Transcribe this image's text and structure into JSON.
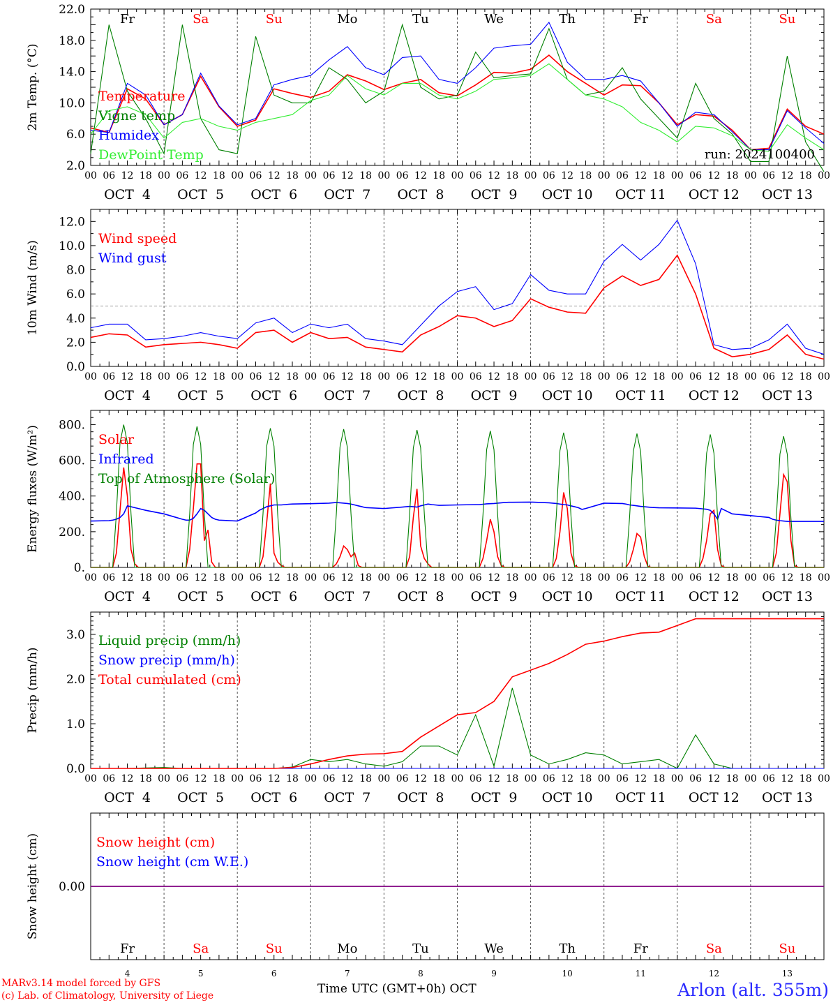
{
  "days": [
    "Fr",
    "Sa",
    "Su",
    "Mo",
    "Tu",
    "We",
    "Th",
    "Fr",
    "Sa",
    "Su"
  ],
  "weekend_days": [
    "Sa",
    "Su"
  ],
  "day_numbers": [
    "4",
    "5",
    "6",
    "7",
    "8",
    "9",
    "10",
    "11",
    "12",
    "13"
  ],
  "date_labels": [
    "OCT  4",
    "OCT  5",
    "OCT  6",
    "OCT  7",
    "OCT  8",
    "OCT  9",
    "OCT 10",
    "OCT 11",
    "OCT 12",
    "OCT 13"
  ],
  "hour_labels": [
    "00",
    "06",
    "12",
    "18"
  ],
  "hour_end_label": "00",
  "colors": {
    "red": "#ff0000",
    "green": "#008000",
    "blue": "#0000ff",
    "lightgreen": "#33ee33",
    "purple": "#800080",
    "grid": "#555555"
  },
  "footer": {
    "credit_line1": "MARv3.14 model forced by GFS",
    "credit_line2": "(c) Lab. of Climatology, University of Liege",
    "xaxis_title": "Time UTC (GMT+0h) OCT",
    "station": "Arlon (alt. 355m)"
  },
  "chart_data": [
    {
      "type": "line",
      "ylabel": "2m Temp. (°C)",
      "ylim": [
        2.0,
        22.0
      ],
      "yticks": [
        "2.0",
        "6.0",
        "10.0",
        "14.0",
        "18.0",
        "22.0"
      ],
      "show_day_names": true,
      "annotation": "run: 2024100400",
      "x_days": [
        0,
        0.25,
        0.5,
        0.75,
        1,
        1.25,
        1.5,
        1.75,
        2,
        2.25,
        2.5,
        2.75,
        3,
        3.25,
        3.5,
        3.75,
        4,
        4.25,
        4.5,
        4.75,
        5,
        5.25,
        5.5,
        5.75,
        6,
        6.25,
        6.5,
        6.75,
        7,
        7.25,
        7.5,
        7.75,
        8,
        8.25,
        8.5,
        8.75,
        9,
        9.25,
        9.5,
        9.75,
        10
      ],
      "series": [
        {
          "name": "Temperature",
          "color": "red",
          "values": [
            6.8,
            6.2,
            11.8,
            10.5,
            7.2,
            8.5,
            13.4,
            9.5,
            7.0,
            7.8,
            11.8,
            11.2,
            10.7,
            11.5,
            13.6,
            12.8,
            11.7,
            12.5,
            13.0,
            11.3,
            10.9,
            12.3,
            13.9,
            13.8,
            14.3,
            16.1,
            14.0,
            12.5,
            11.0,
            12.3,
            12.2,
            10.0,
            7.2,
            8.5,
            8.3,
            6.5,
            4.0,
            4.2,
            9.2,
            7.0,
            6.0
          ]
        },
        {
          "name": "Vigne temp",
          "color": "green",
          "values": [
            3.5,
            20.0,
            11.5,
            8.0,
            3.5,
            20.0,
            8.0,
            4.0,
            3.5,
            18.5,
            11.0,
            10.0,
            10.0,
            14.5,
            13.0,
            10.0,
            11.5,
            20.0,
            12.0,
            10.5,
            11.0,
            16.5,
            13.2,
            13.5,
            13.7,
            19.5,
            13.0,
            11.0,
            11.5,
            14.5,
            10.5,
            8.0,
            5.5,
            12.5,
            8.0,
            6.0,
            2.5,
            2.5,
            16.0,
            5.0,
            1.2
          ]
        },
        {
          "name": "Humidex",
          "color": "blue",
          "values": [
            6.5,
            6.2,
            12.5,
            11.0,
            7.2,
            8.5,
            13.8,
            9.6,
            7.2,
            8.0,
            12.3,
            13.0,
            13.5,
            15.5,
            17.2,
            14.5,
            13.6,
            15.8,
            16.0,
            13.0,
            12.5,
            14.5,
            17.0,
            17.3,
            17.5,
            20.3,
            15.2,
            13.0,
            13.0,
            13.5,
            12.8,
            10.0,
            7.0,
            8.8,
            8.5,
            6.3,
            4.0,
            4.0,
            9.0,
            6.8,
            4.8
          ]
        },
        {
          "name": "DewPoint Temp",
          "color": "lightgreen",
          "values": [
            6.0,
            9.0,
            9.5,
            8.5,
            5.5,
            7.5,
            8.0,
            7.0,
            6.5,
            7.5,
            8.0,
            8.5,
            10.3,
            11.0,
            13.5,
            11.8,
            11.0,
            12.5,
            12.5,
            11.0,
            10.5,
            11.5,
            13.0,
            13.2,
            13.5,
            15.0,
            13.0,
            11.0,
            10.5,
            9.5,
            7.5,
            6.5,
            5.0,
            7.0,
            6.8,
            5.8,
            4.0,
            3.8,
            7.2,
            5.5,
            4.0
          ]
        }
      ]
    },
    {
      "type": "line",
      "ylabel": "10m Wind (m/s)",
      "ylim": [
        0.0,
        13.0
      ],
      "yticks": [
        "0.0",
        "2.0",
        "4.0",
        "6.0",
        "8.0",
        "10.0",
        "12.0"
      ],
      "ytick_values": [
        0,
        2,
        4,
        6,
        8,
        10,
        12
      ],
      "hline": 5.0,
      "x_days": [
        0,
        0.25,
        0.5,
        0.75,
        1,
        1.25,
        1.5,
        1.75,
        2,
        2.25,
        2.5,
        2.75,
        3,
        3.25,
        3.5,
        3.75,
        4,
        4.25,
        4.5,
        4.75,
        5,
        5.25,
        5.5,
        5.75,
        6,
        6.25,
        6.5,
        6.75,
        7,
        7.25,
        7.5,
        7.75,
        8,
        8.25,
        8.5,
        8.75,
        9,
        9.25,
        9.5,
        9.75,
        10
      ],
      "series": [
        {
          "name": "Wind speed",
          "color": "red",
          "values": [
            2.4,
            2.7,
            2.6,
            1.6,
            1.8,
            1.9,
            2.0,
            1.8,
            1.5,
            2.8,
            3.0,
            2.0,
            2.8,
            2.3,
            2.4,
            1.6,
            1.4,
            1.2,
            2.6,
            3.3,
            4.2,
            4.0,
            3.3,
            3.8,
            5.6,
            4.9,
            4.5,
            4.4,
            6.5,
            7.5,
            6.7,
            7.2,
            9.2,
            6.0,
            1.5,
            0.8,
            1.0,
            1.4,
            2.6,
            1.0,
            0.6
          ]
        },
        {
          "name": "Wind gust",
          "color": "blue",
          "values": [
            3.2,
            3.5,
            3.5,
            2.2,
            2.3,
            2.5,
            2.8,
            2.5,
            2.3,
            3.6,
            4.0,
            2.8,
            3.5,
            3.2,
            3.5,
            2.3,
            2.1,
            1.8,
            3.4,
            5.0,
            6.2,
            6.6,
            4.7,
            5.2,
            7.6,
            6.3,
            6.0,
            6.0,
            8.7,
            10.1,
            8.8,
            10.1,
            12.1,
            8.5,
            1.8,
            1.4,
            1.5,
            2.2,
            3.5,
            1.5,
            1.0
          ]
        }
      ]
    },
    {
      "type": "line",
      "ylabel": "Energy fluxes (W/m²)",
      "ylim": [
        0,
        880
      ],
      "yticks": [
        "0.",
        "200.",
        "400.",
        "600.",
        "800."
      ],
      "ytick_values": [
        0,
        200,
        400,
        600,
        800
      ],
      "x_days": [
        0,
        0.25,
        0.3,
        0.35,
        0.4,
        0.45,
        0.5,
        0.55,
        0.6,
        0.65,
        0.7,
        0.75,
        1,
        1.25,
        1.3,
        1.35,
        1.4,
        1.45,
        1.5,
        1.55,
        1.6,
        1.65,
        1.7,
        1.75,
        2,
        2.25,
        2.3,
        2.35,
        2.4,
        2.45,
        2.5,
        2.55,
        2.6,
        2.65,
        2.7,
        2.75,
        3,
        3.25,
        3.3,
        3.35,
        3.4,
        3.45,
        3.5,
        3.55,
        3.6,
        3.65,
        3.7,
        3.75,
        4,
        4.25,
        4.3,
        4.35,
        4.4,
        4.45,
        4.5,
        4.55,
        4.6,
        4.65,
        4.7,
        4.75,
        5,
        5.25,
        5.3,
        5.35,
        5.4,
        5.45,
        5.5,
        5.55,
        5.6,
        5.65,
        5.7,
        5.75,
        6,
        6.25,
        6.3,
        6.35,
        6.4,
        6.45,
        6.5,
        6.55,
        6.6,
        6.65,
        6.7,
        6.75,
        7,
        7.25,
        7.3,
        7.35,
        7.4,
        7.45,
        7.5,
        7.55,
        7.6,
        7.65,
        7.7,
        7.75,
        8,
        8.25,
        8.3,
        8.35,
        8.4,
        8.45,
        8.5,
        8.55,
        8.6,
        8.65,
        8.7,
        8.75,
        9,
        9.25,
        9.3,
        9.35,
        9.4,
        9.45,
        9.5,
        9.55,
        9.6,
        9.65,
        9.7,
        9.75,
        10
      ],
      "series": [
        {
          "name": "Solar",
          "color": "red",
          "values": [
            0,
            0,
            0,
            80,
            320,
            560,
            400,
            100,
            20,
            0,
            0,
            0,
            0,
            0,
            0,
            100,
            330,
            580,
            580,
            150,
            210,
            30,
            0,
            0,
            0,
            0,
            0,
            60,
            250,
            470,
            80,
            30,
            10,
            0,
            0,
            0,
            0,
            0,
            0,
            20,
            60,
            120,
            100,
            60,
            80,
            10,
            0,
            0,
            0,
            0,
            0,
            60,
            280,
            440,
            120,
            50,
            20,
            0,
            0,
            0,
            0,
            0,
            0,
            50,
            150,
            270,
            200,
            60,
            10,
            0,
            0,
            0,
            0,
            0,
            0,
            50,
            200,
            420,
            330,
            80,
            10,
            0,
            0,
            0,
            0,
            0,
            0,
            30,
            100,
            190,
            170,
            60,
            5,
            0,
            0,
            0,
            0,
            0,
            0,
            50,
            150,
            300,
            320,
            100,
            10,
            0,
            0,
            0,
            0,
            0,
            0,
            80,
            300,
            520,
            480,
            150,
            10,
            0,
            0,
            0,
            0
          ]
        },
        {
          "name": "Infrared",
          "color": "blue",
          "values": [
            260,
            262,
            265,
            270,
            280,
            300,
            345,
            340,
            335,
            330,
            325,
            320,
            300,
            270,
            265,
            265,
            275,
            300,
            330,
            320,
            300,
            280,
            270,
            265,
            260,
            305,
            320,
            330,
            340,
            345,
            350,
            350,
            350,
            352,
            354,
            355,
            357,
            360,
            362,
            364,
            362,
            360,
            358,
            355,
            350,
            345,
            340,
            335,
            330,
            338,
            340,
            342,
            340,
            338,
            345,
            350,
            355,
            352,
            350,
            348,
            350,
            352,
            352,
            354,
            356,
            357,
            358,
            360,
            362,
            364,
            365,
            365,
            366,
            362,
            360,
            358,
            355,
            352,
            350,
            345,
            340,
            335,
            325,
            330,
            360,
            358,
            355,
            350,
            348,
            345,
            342,
            340,
            338,
            336,
            335,
            334,
            333,
            332,
            330,
            328,
            326,
            320,
            300,
            270,
            330,
            320,
            310,
            300,
            290,
            280,
            270,
            265,
            262,
            260,
            258,
            258,
            258,
            258,
            258,
            258,
            258
          ]
        },
        {
          "name": "Top of Atmosphere (Solar)",
          "color": "green",
          "values": [
            0,
            0,
            0,
            300,
            700,
            800,
            700,
            300,
            0,
            0,
            0,
            0,
            0,
            0,
            0,
            300,
            690,
            790,
            690,
            300,
            0,
            0,
            0,
            0,
            0,
            0,
            0,
            300,
            680,
            780,
            680,
            300,
            0,
            0,
            0,
            0,
            0,
            0,
            0,
            300,
            675,
            775,
            675,
            300,
            0,
            0,
            0,
            0,
            0,
            0,
            0,
            300,
            670,
            770,
            670,
            300,
            0,
            0,
            0,
            0,
            0,
            0,
            0,
            295,
            660,
            765,
            660,
            295,
            0,
            0,
            0,
            0,
            0,
            0,
            0,
            290,
            655,
            755,
            655,
            290,
            0,
            0,
            0,
            0,
            0,
            0,
            0,
            285,
            650,
            750,
            650,
            285,
            0,
            0,
            0,
            0,
            0,
            0,
            0,
            280,
            640,
            745,
            640,
            280,
            0,
            0,
            0,
            0,
            0,
            0,
            0,
            275,
            635,
            735,
            635,
            275,
            0,
            0,
            0,
            0,
            0
          ]
        }
      ]
    },
    {
      "type": "line",
      "ylabel": "Precip (mm/h)",
      "ylim": [
        0.0,
        3.5
      ],
      "yticks": [
        "0.0",
        "1.0",
        "2.0",
        "3.0"
      ],
      "ytick_values": [
        0,
        1,
        2,
        3
      ],
      "x_days": [
        0,
        0.25,
        0.5,
        0.75,
        1,
        1.25,
        1.5,
        1.75,
        2,
        2.25,
        2.5,
        2.75,
        3,
        3.25,
        3.5,
        3.75,
        4,
        4.25,
        4.5,
        4.75,
        5,
        5.25,
        5.5,
        5.75,
        6,
        6.25,
        6.5,
        6.75,
        7,
        7.25,
        7.5,
        7.75,
        8,
        8.25,
        8.5,
        8.75,
        9,
        9.25,
        9.5,
        9.75,
        10
      ],
      "series": [
        {
          "name": "Liquid precip (mm/h)",
          "color": "green",
          "values": [
            0,
            0,
            0,
            0.01,
            0.02,
            0,
            0,
            0,
            0,
            0,
            0,
            0.03,
            0.2,
            0.15,
            0.2,
            0.1,
            0.05,
            0.15,
            0.5,
            0.5,
            0.3,
            1.2,
            0.05,
            1.8,
            0.3,
            0.1,
            0.2,
            0.35,
            0.3,
            0.1,
            0.15,
            0.2,
            0,
            0.75,
            0.1,
            0,
            0,
            0,
            0,
            0,
            0
          ]
        },
        {
          "name": "Snow precip (mm/h)",
          "color": "blue",
          "values": [
            0,
            0,
            0,
            0,
            0,
            0,
            0,
            0,
            0,
            0,
            0,
            0,
            0,
            0,
            0,
            0,
            0,
            0,
            0,
            0,
            0,
            0,
            0,
            0,
            0,
            0,
            0,
            0,
            0,
            0,
            0,
            0,
            0,
            0,
            0,
            0,
            0,
            0,
            0,
            0,
            0
          ]
        },
        {
          "name": "Total cumulated (cm)",
          "color": "red",
          "values": [
            0,
            0,
            0,
            0,
            0,
            0,
            0,
            0,
            0,
            0,
            0,
            0.02,
            0.1,
            0.2,
            0.28,
            0.32,
            0.33,
            0.38,
            0.7,
            0.95,
            1.2,
            1.25,
            1.5,
            2.05,
            2.2,
            2.35,
            2.55,
            2.78,
            2.85,
            2.95,
            3.03,
            3.05,
            3.2,
            3.35,
            3.35,
            3.35,
            3.35,
            3.35,
            3.35,
            3.35,
            3.35
          ]
        }
      ]
    },
    {
      "type": "line",
      "ylabel": "Snow height (cm)",
      "ylim": [
        -1,
        1
      ],
      "yticks": [
        "0.00"
      ],
      "ytick_values": [
        0
      ],
      "show_day_names": true,
      "x_days": [
        0,
        10
      ],
      "series": [
        {
          "name": "Snow height (cm)",
          "color": "red",
          "values": [
            0,
            0
          ]
        },
        {
          "name": "Snow height (cm W.E.)",
          "color": "blue",
          "values": [
            0,
            0
          ]
        }
      ]
    }
  ]
}
